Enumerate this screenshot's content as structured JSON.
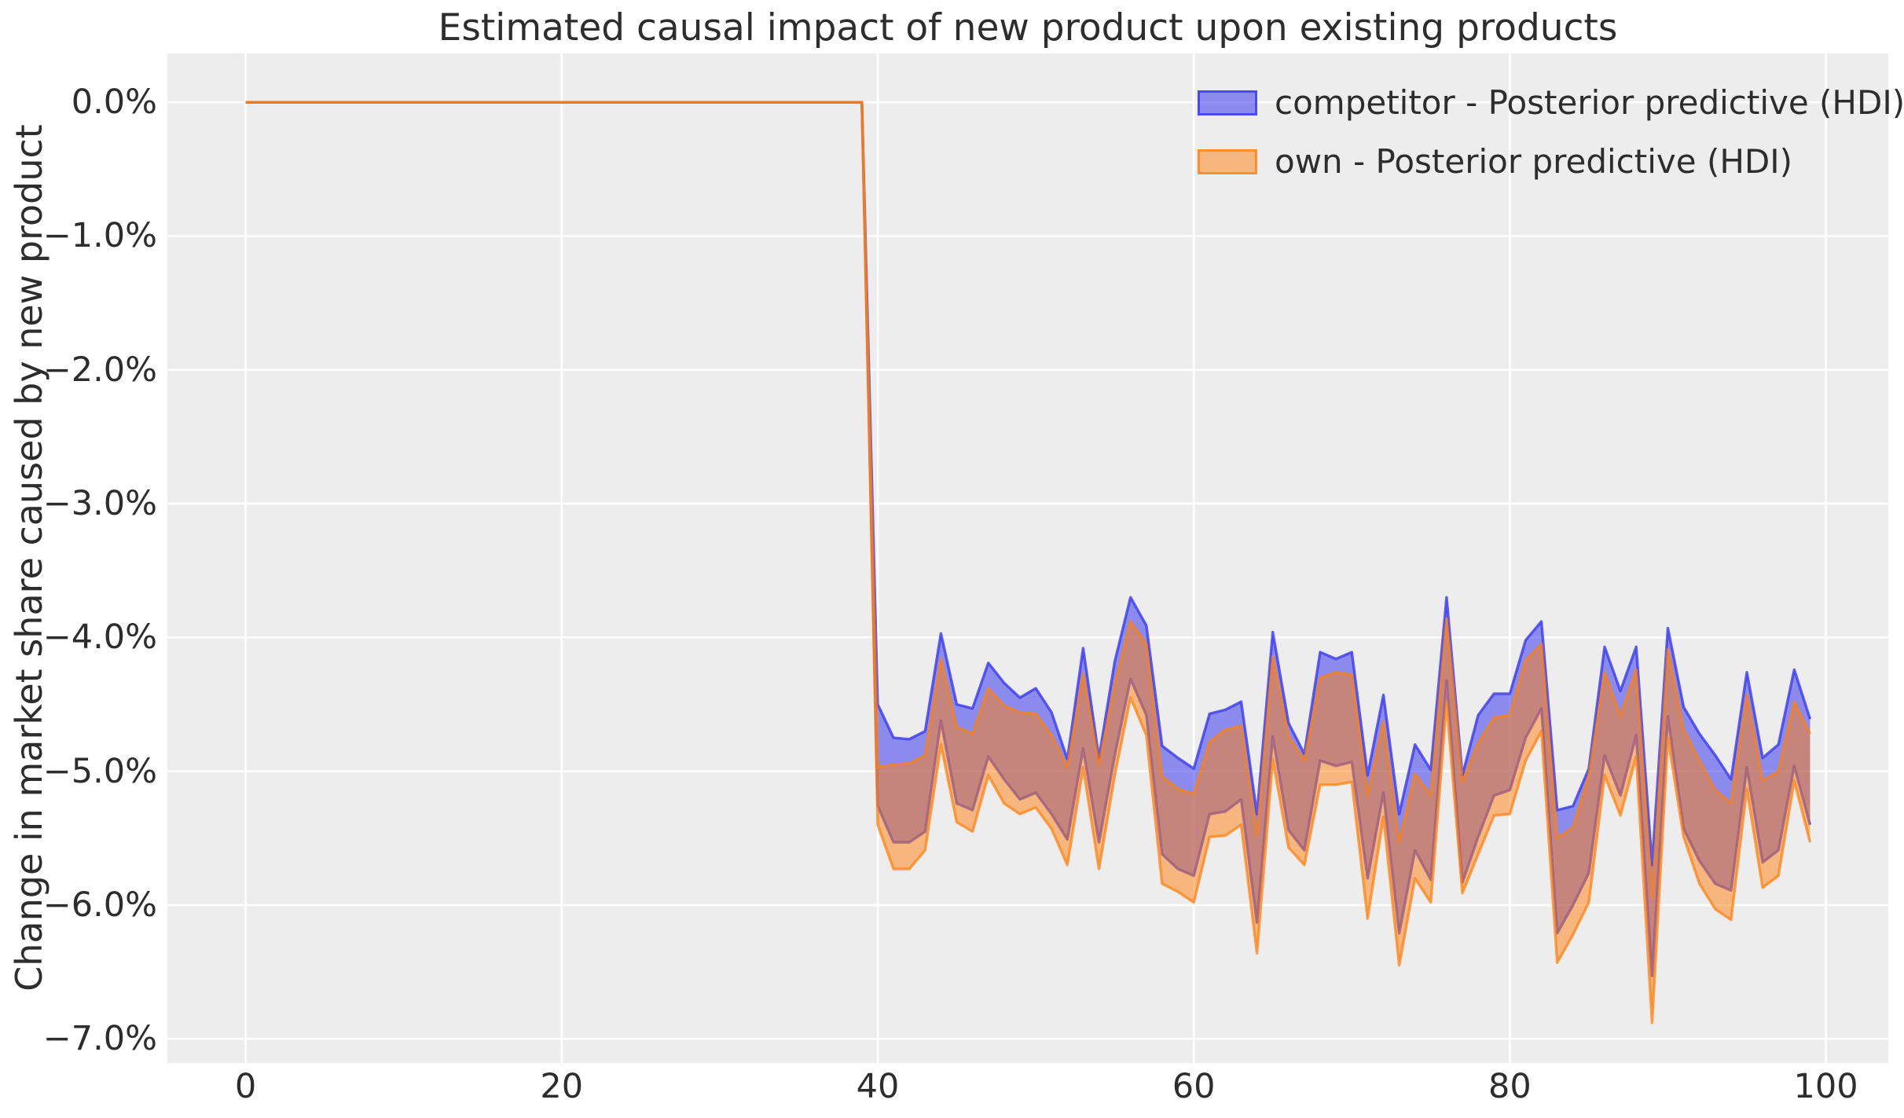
{
  "page": {
    "background": "#ffffff"
  },
  "chart_data": {
    "type": "area",
    "title": "Estimated causal impact of new product upon existing products",
    "xlabel": "",
    "ylabel": "Change in market share caused by new product",
    "plot_bg": "#ededed",
    "grid_color": "#ffffff",
    "text_color": "#2d2d2d",
    "grid": true,
    "legend_position": "upper right",
    "xlim": [
      -4.95,
      103.95
    ],
    "ylim": [
      -7.18,
      0.365
    ],
    "xticks": [
      0,
      20,
      40,
      60,
      80,
      100
    ],
    "xtick_labels": [
      "0",
      "20",
      "40",
      "60",
      "80",
      "100"
    ],
    "ytick_values": [
      0,
      -1,
      -2,
      -3,
      -4,
      -5,
      -6,
      -7
    ],
    "ytick_labels": [
      "0.0%",
      "−1.0%",
      "−2.0%",
      "−3.0%",
      "−4.0%",
      "−5.0%",
      "−6.0%",
      "−7.0%"
    ],
    "units": "percent",
    "x": [
      0,
      1,
      2,
      3,
      4,
      5,
      6,
      7,
      8,
      9,
      10,
      11,
      12,
      13,
      14,
      15,
      16,
      17,
      18,
      19,
      20,
      21,
      22,
      23,
      24,
      25,
      26,
      27,
      28,
      29,
      30,
      31,
      32,
      33,
      34,
      35,
      36,
      37,
      38,
      39,
      40,
      41,
      42,
      43,
      44,
      45,
      46,
      47,
      48,
      49,
      50,
      51,
      52,
      53,
      54,
      55,
      56,
      57,
      58,
      59,
      60,
      61,
      62,
      63,
      64,
      65,
      66,
      67,
      68,
      69,
      70,
      71,
      72,
      73,
      74,
      75,
      76,
      77,
      78,
      79,
      80,
      81,
      82,
      83,
      84,
      85,
      86,
      87,
      88,
      89,
      90,
      91,
      92,
      93,
      94,
      95,
      96,
      97,
      98,
      99
    ],
    "intervention_x": 40,
    "series": [
      {
        "id": "competitor",
        "name": "competitor - Posterior predictive (HDI)",
        "color": "#3a3aed",
        "fill_alpha": 0.55,
        "edge_alpha": 0.8,
        "upper": [
          0,
          0,
          0,
          0,
          0,
          0,
          0,
          0,
          0,
          0,
          0,
          0,
          0,
          0,
          0,
          0,
          0,
          0,
          0,
          0,
          0,
          0,
          0,
          0,
          0,
          0,
          0,
          0,
          0,
          0,
          0,
          0,
          0,
          0,
          0,
          0,
          0,
          0,
          0,
          0,
          -4.5,
          -4.75,
          -4.76,
          -4.7,
          -3.97,
          -4.5,
          -4.53,
          -4.19,
          -4.34,
          -4.45,
          -4.38,
          -4.56,
          -4.91,
          -4.08,
          -4.9,
          -4.18,
          -3.7,
          -3.91,
          -4.81,
          -4.9,
          -4.98,
          -4.57,
          -4.54,
          -4.48,
          -5.32,
          -3.96,
          -4.64,
          -4.87,
          -4.11,
          -4.16,
          -4.11,
          -5.03,
          -4.43,
          -5.32,
          -4.8,
          -4.99,
          -3.7,
          -5.03,
          -4.58,
          -4.42,
          -4.42,
          -4.02,
          -3.88,
          -5.29,
          -5.26,
          -4.98,
          -4.07,
          -4.4,
          -4.07,
          -5.7,
          -3.93,
          -4.52,
          -4.72,
          -4.88,
          -5.06,
          -4.26,
          -4.9,
          -4.8,
          -4.24,
          -4.61
        ],
        "lower": [
          0,
          0,
          0,
          0,
          0,
          0,
          0,
          0,
          0,
          0,
          0,
          0,
          0,
          0,
          0,
          0,
          0,
          0,
          0,
          0,
          0,
          0,
          0,
          0,
          0,
          0,
          0,
          0,
          0,
          0,
          0,
          0,
          0,
          0,
          0,
          0,
          0,
          0,
          0,
          0,
          -5.26,
          -5.53,
          -5.53,
          -5.45,
          -4.62,
          -5.24,
          -5.29,
          -4.89,
          -5.06,
          -5.21,
          -5.16,
          -5.32,
          -5.51,
          -4.83,
          -5.53,
          -4.88,
          -4.31,
          -4.58,
          -5.62,
          -5.73,
          -5.78,
          -5.32,
          -5.3,
          -5.21,
          -6.13,
          -4.74,
          -5.44,
          -5.59,
          -4.92,
          -4.96,
          -4.93,
          -5.8,
          -5.16,
          -6.21,
          -5.59,
          -5.81,
          -4.32,
          -5.83,
          -5.49,
          -5.18,
          -5.14,
          -4.75,
          -4.53,
          -6.21,
          -6.0,
          -5.76,
          -4.88,
          -5.18,
          -4.73,
          -6.53,
          -4.59,
          -5.43,
          -5.67,
          -5.84,
          -5.89,
          -4.97,
          -5.68,
          -5.59,
          -4.96,
          -5.4
        ]
      },
      {
        "id": "own",
        "name": "own - Posterior predictive (HDI)",
        "color": "#ff7f0e",
        "fill_alpha": 0.5,
        "edge_alpha": 0.72,
        "upper": [
          0,
          0,
          0,
          0,
          0,
          0,
          0,
          0,
          0,
          0,
          0,
          0,
          0,
          0,
          0,
          0,
          0,
          0,
          0,
          0,
          0,
          0,
          0,
          0,
          0,
          0,
          0,
          0,
          0,
          0,
          0,
          0,
          0,
          0,
          0,
          0,
          0,
          0,
          0,
          0,
          -4.97,
          -4.95,
          -4.94,
          -4.88,
          -4.16,
          -4.67,
          -4.72,
          -4.38,
          -4.51,
          -4.56,
          -4.57,
          -4.73,
          -4.97,
          -4.27,
          -4.95,
          -4.35,
          -3.88,
          -4.05,
          -5.04,
          -5.13,
          -5.17,
          -4.78,
          -4.69,
          -4.66,
          -5.48,
          -4.14,
          -4.74,
          -4.92,
          -4.3,
          -4.26,
          -4.28,
          -5.18,
          -4.63,
          -5.53,
          -5.02,
          -5.18,
          -3.86,
          -5.08,
          -4.79,
          -4.6,
          -4.58,
          -4.17,
          -4.05,
          -5.5,
          -5.42,
          -5.03,
          -4.26,
          -4.59,
          -4.24,
          -5.94,
          -4.09,
          -4.69,
          -4.92,
          -5.14,
          -5.24,
          -4.43,
          -5.07,
          -5.0,
          -4.48,
          -4.72
        ],
        "lower": [
          0,
          0,
          0,
          0,
          0,
          0,
          0,
          0,
          0,
          0,
          0,
          0,
          0,
          0,
          0,
          0,
          0,
          0,
          0,
          0,
          0,
          0,
          0,
          0,
          0,
          0,
          0,
          0,
          0,
          0,
          0,
          0,
          0,
          0,
          0,
          0,
          0,
          0,
          0,
          0,
          -5.4,
          -5.73,
          -5.73,
          -5.59,
          -4.8,
          -5.38,
          -5.45,
          -5.03,
          -5.24,
          -5.32,
          -5.27,
          -5.43,
          -5.7,
          -4.97,
          -5.73,
          -5.03,
          -4.45,
          -4.73,
          -5.84,
          -5.9,
          -5.98,
          -5.49,
          -5.48,
          -5.4,
          -6.36,
          -4.91,
          -5.57,
          -5.7,
          -5.1,
          -5.1,
          -5.08,
          -6.1,
          -5.34,
          -6.45,
          -5.8,
          -5.98,
          -4.49,
          -5.91,
          -5.62,
          -5.33,
          -5.32,
          -4.92,
          -4.7,
          -6.43,
          -6.22,
          -5.98,
          -5.03,
          -5.33,
          -4.89,
          -6.88,
          -4.75,
          -5.49,
          -5.84,
          -6.03,
          -6.11,
          -5.13,
          -5.87,
          -5.78,
          -5.07,
          -5.53
        ]
      }
    ]
  }
}
